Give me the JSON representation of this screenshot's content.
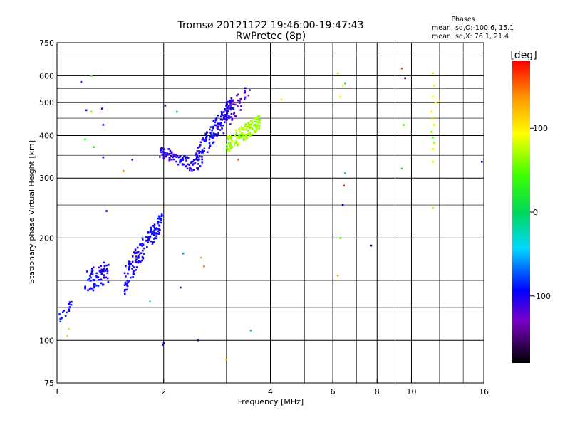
{
  "header": {
    "title_line1": "Tromsø 20121122 19:46:00-19:47:43",
    "title_line2": "RwPretec (8p)",
    "phases_title": "Phases",
    "phases_o": "mean, sd,O:-100.6, 15.1",
    "phases_x": "mean, sd,X:  76.1, 21.4"
  },
  "colorbar": {
    "label": "[deg]",
    "ticks": [
      {
        "value": 100,
        "label": "100"
      },
      {
        "value": 0,
        "label": "0"
      },
      {
        "value": -100,
        "label": "-100"
      }
    ],
    "range": [
      -180,
      180
    ]
  },
  "chart_data": {
    "type": "scatter",
    "title": "Tromsø 20121122 19:46:00-19:47:43",
    "subtitle": "RwPretec (8p)",
    "xlabel": "Frequency [MHz]",
    "ylabel": "Stationary phase Virtual Height [km]",
    "x_scale": "log",
    "y_scale": "log",
    "xlim": [
      1,
      16
    ],
    "ylim": [
      75,
      750
    ],
    "x_ticks": [
      {
        "value": 1,
        "label": "1"
      },
      {
        "value": 2,
        "label": "2"
      },
      {
        "value": 4,
        "label": "4"
      },
      {
        "value": 6,
        "label": "6"
      },
      {
        "value": 8,
        "label": "8"
      },
      {
        "value": 10,
        "label": "10"
      },
      {
        "value": 16,
        "label": "16"
      }
    ],
    "y_ticks": [
      {
        "value": 75,
        "label": "75"
      },
      {
        "value": 100,
        "label": "100"
      },
      {
        "value": 200,
        "label": "200"
      },
      {
        "value": 300,
        "label": "300"
      },
      {
        "value": 400,
        "label": "400"
      },
      {
        "value": 500,
        "label": "500"
      },
      {
        "value": 600,
        "label": "600"
      },
      {
        "value": 750,
        "label": "750"
      }
    ],
    "grid_x": [
      2,
      4,
      6,
      8,
      10
    ],
    "grid_y": [
      100,
      200,
      300,
      400,
      500,
      600
    ],
    "minor_x": [
      3,
      5,
      7,
      9,
      12,
      14
    ],
    "minor_y": [
      125,
      150,
      250,
      350,
      450,
      550,
      700
    ],
    "color_scale": "phase_deg",
    "clusters": [
      {
        "name": "O-trace low",
        "x_from": 1.0,
        "x_to": 1.1,
        "y_from": 113,
        "y_to": 128,
        "phase": -95,
        "spread_y": 5,
        "n": 18
      },
      {
        "name": "O-trace E-layer",
        "x_from": 1.2,
        "x_to": 1.4,
        "y_from": 148,
        "y_to": 160,
        "phase": -100,
        "spread_y": 12,
        "n": 70
      },
      {
        "name": "O-trace E-layer 2",
        "x_from": 1.55,
        "x_to": 1.98,
        "y_from": 150,
        "y_to": 225,
        "phase": -100,
        "spread_y": 14,
        "n": 150
      },
      {
        "name": "O-trace F-layer low",
        "x_from": 1.95,
        "x_to": 2.45,
        "y_from": 360,
        "y_to": 325,
        "phase": -105,
        "spread_y": 14,
        "n": 80
      },
      {
        "name": "O-trace F-layer rise",
        "x_from": 2.45,
        "x_to": 3.15,
        "y_from": 330,
        "y_to": 500,
        "phase": -100,
        "spread_y": 30,
        "n": 150
      },
      {
        "name": "O-trace F-layer top",
        "x_from": 2.95,
        "x_to": 3.5,
        "y_from": 440,
        "y_to": 540,
        "phase": -120,
        "spread_y": 35,
        "n": 40
      },
      {
        "name": "X-trace F-layer",
        "x_from": 3.0,
        "x_to": 3.75,
        "y_from": 375,
        "y_to": 440,
        "phase": 70,
        "spread_y": 22,
        "n": 140
      }
    ],
    "points": [
      {
        "x": 1.17,
        "y": 575,
        "phase": -110
      },
      {
        "x": 1.25,
        "y": 600,
        "phase": 40
      },
      {
        "x": 1.25,
        "y": 470,
        "phase": 65
      },
      {
        "x": 1.21,
        "y": 475,
        "phase": -110
      },
      {
        "x": 1.34,
        "y": 480,
        "phase": -110
      },
      {
        "x": 1.35,
        "y": 430,
        "phase": -105
      },
      {
        "x": 1.2,
        "y": 390,
        "phase": 30
      },
      {
        "x": 1.27,
        "y": 370,
        "phase": 35
      },
      {
        "x": 1.35,
        "y": 345,
        "phase": -110
      },
      {
        "x": 1.38,
        "y": 240,
        "phase": -110
      },
      {
        "x": 1.08,
        "y": 108,
        "phase": 110
      },
      {
        "x": 1.07,
        "y": 103,
        "phase": 120
      },
      {
        "x": 1.54,
        "y": 315,
        "phase": 140
      },
      {
        "x": 1.63,
        "y": 340,
        "phase": -120
      },
      {
        "x": 1.83,
        "y": 130,
        "phase": -20
      },
      {
        "x": 1.99,
        "y": 97,
        "phase": -150
      },
      {
        "x": 2.0,
        "y": 98,
        "phase": -100
      },
      {
        "x": 2.18,
        "y": 470,
        "phase": -10
      },
      {
        "x": 2.02,
        "y": 490,
        "phase": -140
      },
      {
        "x": 2.23,
        "y": 143,
        "phase": -150
      },
      {
        "x": 2.27,
        "y": 180,
        "phase": -60
      },
      {
        "x": 2.5,
        "y": 100,
        "phase": -150
      },
      {
        "x": 2.55,
        "y": 175,
        "phase": 130
      },
      {
        "x": 2.6,
        "y": 165,
        "phase": 150
      },
      {
        "x": 3.0,
        "y": 88,
        "phase": 115
      },
      {
        "x": 3.25,
        "y": 340,
        "phase": 170
      },
      {
        "x": 3.52,
        "y": 107,
        "phase": -5
      },
      {
        "x": 4.3,
        "y": 510,
        "phase": 110
      },
      {
        "x": 6.2,
        "y": 610,
        "phase": 120
      },
      {
        "x": 6.4,
        "y": 560,
        "phase": 90
      },
      {
        "x": 6.5,
        "y": 570,
        "phase": 0
      },
      {
        "x": 6.3,
        "y": 520,
        "phase": 100
      },
      {
        "x": 6.5,
        "y": 310,
        "phase": -10
      },
      {
        "x": 6.45,
        "y": 285,
        "phase": 170
      },
      {
        "x": 6.4,
        "y": 250,
        "phase": -100
      },
      {
        "x": 6.3,
        "y": 200,
        "phase": 60
      },
      {
        "x": 6.2,
        "y": 155,
        "phase": 130
      },
      {
        "x": 7.7,
        "y": 190,
        "phase": -150
      },
      {
        "x": 9.4,
        "y": 630,
        "phase": 160
      },
      {
        "x": 9.6,
        "y": 590,
        "phase": -160
      },
      {
        "x": 9.5,
        "y": 430,
        "phase": 40
      },
      {
        "x": 9.4,
        "y": 320,
        "phase": 20
      },
      {
        "x": 11.5,
        "y": 610,
        "phase": 110
      },
      {
        "x": 11.6,
        "y": 560,
        "phase": 100
      },
      {
        "x": 11.5,
        "y": 520,
        "phase": 90
      },
      {
        "x": 11.7,
        "y": 500,
        "phase": 95
      },
      {
        "x": 11.4,
        "y": 470,
        "phase": 100
      },
      {
        "x": 11.5,
        "y": 450,
        "phase": 120
      },
      {
        "x": 11.6,
        "y": 430,
        "phase": 80
      },
      {
        "x": 11.4,
        "y": 410,
        "phase": 60
      },
      {
        "x": 11.5,
        "y": 395,
        "phase": 40
      },
      {
        "x": 11.6,
        "y": 380,
        "phase": 70
      },
      {
        "x": 11.5,
        "y": 365,
        "phase": 90
      },
      {
        "x": 11.5,
        "y": 335,
        "phase": 100
      },
      {
        "x": 12.0,
        "y": 505,
        "phase": 110
      },
      {
        "x": 11.5,
        "y": 245,
        "phase": 110
      },
      {
        "x": 15.8,
        "y": 335,
        "phase": -110
      }
    ]
  }
}
